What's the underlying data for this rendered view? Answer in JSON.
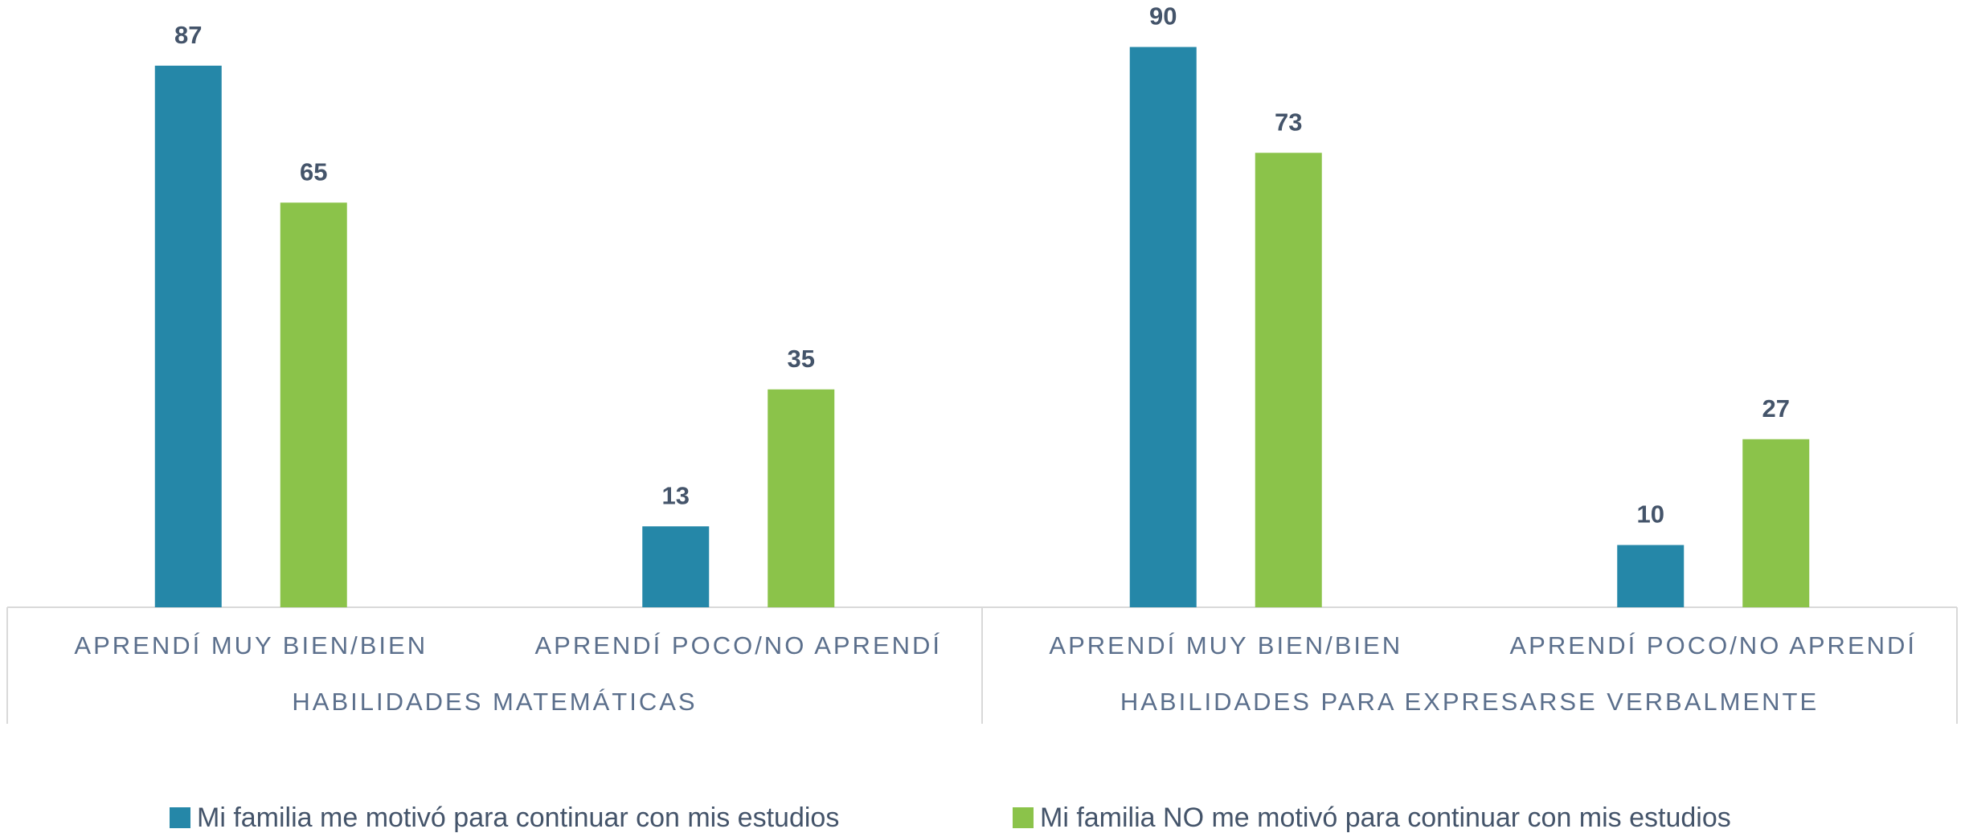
{
  "chart_data": {
    "type": "bar",
    "categories": [
      "APRENDÍ MUY BIEN/BIEN",
      "APRENDÍ POCO/NO APRENDÍ",
      "APRENDÍ MUY BIEN/BIEN",
      "APRENDÍ POCO/NO APRENDÍ"
    ],
    "groups": [
      "HABILIDADES MATEMÁTICAS",
      "HABILIDADES PARA EXPRESARSE VERBALMENTE"
    ],
    "series": [
      {
        "name": "Mi familia me motivó para continuar con mis estudios",
        "color": "#2587a8",
        "values": [
          87,
          13,
          90,
          10
        ]
      },
      {
        "name": "Mi familia NO me motivó para continuar con mis estudios",
        "color": "#8bc34a",
        "values": [
          65,
          35,
          73,
          27
        ]
      }
    ],
    "ylim": [
      0,
      100
    ],
    "legend": "bottom"
  }
}
